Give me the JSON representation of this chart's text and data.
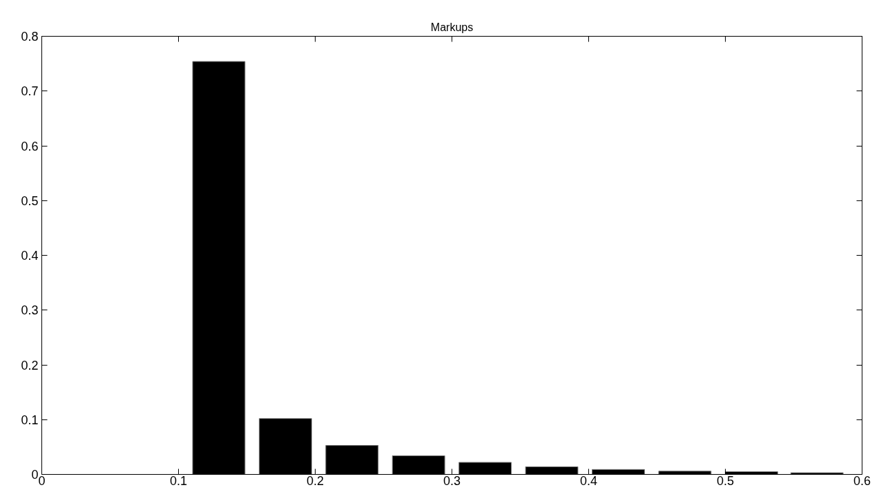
{
  "chart_data": {
    "type": "bar",
    "title": "Markups",
    "x": [
      0.1295,
      0.1782,
      0.2269,
      0.2756,
      0.3243,
      0.373,
      0.4217,
      0.4704,
      0.5191,
      0.567
    ],
    "series": [
      {
        "color": "#000000",
        "values": [
          0.754,
          0.102,
          0.053,
          0.034,
          0.022,
          0.014,
          0.009,
          0.006,
          0.005,
          0.003
        ]
      }
    ],
    "xlim": [
      0,
      0.6
    ],
    "xticks": [
      0,
      0.1,
      0.2,
      0.3,
      0.4,
      0.5,
      0.6
    ],
    "ylim": [
      0,
      0.8
    ],
    "yticks": [
      0,
      0.1,
      0.2,
      0.3,
      0.4,
      0.5,
      0.6,
      0.7,
      0.8
    ],
    "grid": false
  }
}
